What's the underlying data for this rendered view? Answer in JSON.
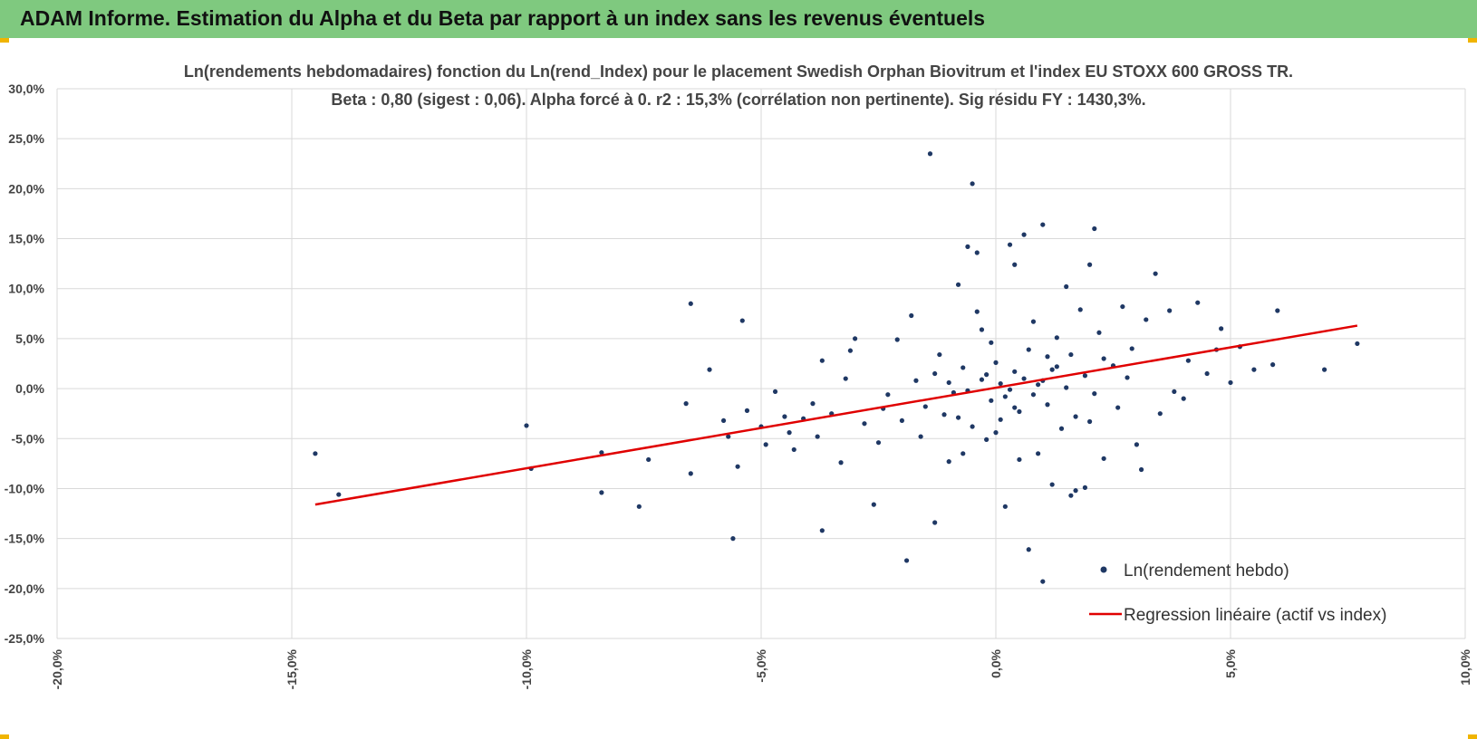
{
  "header": {
    "title": "ADAM Informe. Estimation du Alpha et du Beta par rapport à un index sans les revenus éventuels"
  },
  "colors": {
    "banner": "#7fc97f",
    "points": "#1f3864",
    "regression": "#e00000",
    "grid": "#d9d9d9",
    "corner": "#f0b400"
  },
  "chart_data": {
    "type": "scatter",
    "title": "Ln(rendements hebdomadaires) fonction du Ln(rend_Index) pour le placement Swedish Orphan Biovitrum  et l'index EU STOXX 600 GROSS TR.",
    "subtitle": "Beta : 0,80 (sigest : 0,06). Alpha forcé à 0. r2 : 15,3% (corrélation non pertinente). Sig résidu FY : 1430,3%.",
    "xlabel": "",
    "ylabel": "",
    "xlim": [
      -20,
      10
    ],
    "ylim": [
      -25,
      30
    ],
    "xticks": [
      -20,
      -15,
      -10,
      -5,
      0,
      5,
      10
    ],
    "xtick_labels": [
      "-20,0%",
      "-15,0%",
      "-10,0%",
      "-5,0%",
      "0,0%",
      "5,0%",
      "10,0%"
    ],
    "yticks": [
      30,
      25,
      20,
      15,
      10,
      5,
      0,
      -5,
      -10,
      -15,
      -20,
      -25
    ],
    "ytick_labels": [
      "30,0%",
      "25,0%",
      "20,0%",
      "15,0%",
      "10,0%",
      "5,0%",
      "0,0%",
      "-5,0%",
      "-10,0%",
      "-15,0%",
      "-20,0%",
      "-25,0%"
    ],
    "grid": true,
    "legend_position": "bottom-right",
    "series": [
      {
        "name": "Ln(rendement hebdo)",
        "type": "scatter",
        "points": [
          [
            -14.5,
            -6.5
          ],
          [
            -14.0,
            -10.6
          ],
          [
            -10.0,
            -3.7
          ],
          [
            -9.9,
            -8.0
          ],
          [
            -8.4,
            -10.4
          ],
          [
            -8.4,
            -6.4
          ],
          [
            -7.6,
            -11.8
          ],
          [
            -7.4,
            -7.1
          ],
          [
            -6.6,
            -1.5
          ],
          [
            -6.5,
            8.5
          ],
          [
            -6.5,
            -8.5
          ],
          [
            -6.1,
            1.9
          ],
          [
            -5.8,
            -3.2
          ],
          [
            -5.7,
            -4.8
          ],
          [
            -5.6,
            -15.0
          ],
          [
            -5.5,
            -7.8
          ],
          [
            -5.4,
            6.8
          ],
          [
            -5.3,
            -2.2
          ],
          [
            -5.0,
            -3.8
          ],
          [
            -4.9,
            -5.6
          ],
          [
            -4.7,
            -0.3
          ],
          [
            -4.5,
            -2.8
          ],
          [
            -4.4,
            -4.4
          ],
          [
            -4.3,
            -6.1
          ],
          [
            -4.1,
            -3.0
          ],
          [
            -3.9,
            -1.5
          ],
          [
            -3.8,
            -4.8
          ],
          [
            -3.7,
            2.8
          ],
          [
            -3.7,
            -14.2
          ],
          [
            -3.5,
            -2.5
          ],
          [
            -3.3,
            -7.4
          ],
          [
            -3.2,
            1.0
          ],
          [
            -3.1,
            3.8
          ],
          [
            -3.0,
            5.0
          ],
          [
            -2.8,
            -3.5
          ],
          [
            -2.6,
            -11.6
          ],
          [
            -2.5,
            -5.4
          ],
          [
            -2.3,
            -0.6
          ],
          [
            -2.1,
            4.9
          ],
          [
            -1.9,
            -17.2
          ],
          [
            -1.8,
            7.3
          ],
          [
            -1.6,
            -4.8
          ],
          [
            -1.4,
            23.5
          ],
          [
            -1.3,
            -13.4
          ],
          [
            -1.2,
            3.4
          ],
          [
            -1.0,
            -7.3
          ],
          [
            -0.8,
            10.4
          ],
          [
            -0.7,
            -6.5
          ],
          [
            -0.6,
            14.2
          ],
          [
            -0.5,
            20.5
          ],
          [
            -0.4,
            13.6
          ],
          [
            -0.4,
            7.7
          ],
          [
            -0.3,
            5.9
          ],
          [
            -0.2,
            -5.1
          ],
          [
            -0.1,
            4.6
          ],
          [
            0.1,
            -3.1
          ],
          [
            0.2,
            -11.8
          ],
          [
            0.3,
            14.4
          ],
          [
            0.4,
            12.4
          ],
          [
            0.5,
            -7.1
          ],
          [
            0.6,
            15.4
          ],
          [
            0.7,
            -16.1
          ],
          [
            0.8,
            6.7
          ],
          [
            0.9,
            -6.5
          ],
          [
            1.0,
            16.4
          ],
          [
            1.1,
            3.2
          ],
          [
            1.2,
            -9.6
          ],
          [
            1.3,
            5.1
          ],
          [
            1.4,
            -4.0
          ],
          [
            1.5,
            10.2
          ],
          [
            1.6,
            -10.7
          ],
          [
            1.7,
            -10.2
          ],
          [
            1.8,
            7.9
          ],
          [
            1.9,
            -9.9
          ],
          [
            2.0,
            12.4
          ],
          [
            2.1,
            16.0
          ],
          [
            2.2,
            5.6
          ],
          [
            2.3,
            -7.0
          ],
          [
            2.5,
            2.3
          ],
          [
            2.7,
            8.2
          ],
          [
            2.9,
            4.0
          ],
          [
            3.0,
            -5.6
          ],
          [
            3.1,
            -8.1
          ],
          [
            3.2,
            6.9
          ],
          [
            3.4,
            11.5
          ],
          [
            3.5,
            -2.5
          ],
          [
            3.7,
            7.8
          ],
          [
            3.8,
            -0.3
          ],
          [
            4.0,
            -1.0
          ],
          [
            4.1,
            2.8
          ],
          [
            4.3,
            8.6
          ],
          [
            4.5,
            1.5
          ],
          [
            4.7,
            3.9
          ],
          [
            4.8,
            6.0
          ],
          [
            5.0,
            0.6
          ],
          [
            5.2,
            4.2
          ],
          [
            5.5,
            1.9
          ],
          [
            5.9,
            2.4
          ],
          [
            6.0,
            7.8
          ],
          [
            7.0,
            1.9
          ],
          [
            7.7,
            4.5
          ],
          [
            1.0,
            -19.3
          ],
          [
            -2.4,
            -2.0
          ],
          [
            -2.0,
            -3.2
          ],
          [
            -1.7,
            0.8
          ],
          [
            -1.5,
            -1.8
          ],
          [
            -1.3,
            1.5
          ],
          [
            -1.1,
            -2.6
          ],
          [
            -0.9,
            -0.4
          ],
          [
            -0.7,
            2.1
          ],
          [
            -0.5,
            -3.8
          ],
          [
            -0.3,
            0.9
          ],
          [
            -0.1,
            -1.2
          ],
          [
            0.0,
            2.6
          ],
          [
            0.2,
            -0.8
          ],
          [
            0.4,
            1.7
          ],
          [
            0.5,
            -2.3
          ],
          [
            0.7,
            3.9
          ],
          [
            0.9,
            0.4
          ],
          [
            1.1,
            -1.6
          ],
          [
            1.3,
            2.2
          ],
          [
            1.5,
            0.1
          ],
          [
            1.7,
            -2.8
          ],
          [
            1.9,
            1.3
          ],
          [
            2.1,
            -0.5
          ],
          [
            2.3,
            3.0
          ],
          [
            2.6,
            -1.9
          ],
          [
            2.8,
            1.1
          ],
          [
            -0.6,
            -0.2
          ],
          [
            0.1,
            0.5
          ],
          [
            0.3,
            -0.1
          ],
          [
            0.6,
            1.0
          ],
          [
            0.8,
            -0.6
          ],
          [
            1.0,
            0.8
          ],
          [
            -0.2,
            1.4
          ],
          [
            1.2,
            1.9
          ],
          [
            -1.0,
            0.6
          ],
          [
            0.4,
            -1.9
          ],
          [
            1.6,
            3.4
          ],
          [
            -0.8,
            -2.9
          ],
          [
            2.0,
            -3.3
          ],
          [
            0.0,
            -4.4
          ]
        ]
      },
      {
        "name": "Regression linéaire (actif vs index)",
        "type": "line",
        "points": [
          [
            -14.5,
            -11.6
          ],
          [
            7.7,
            6.3
          ]
        ]
      }
    ]
  }
}
